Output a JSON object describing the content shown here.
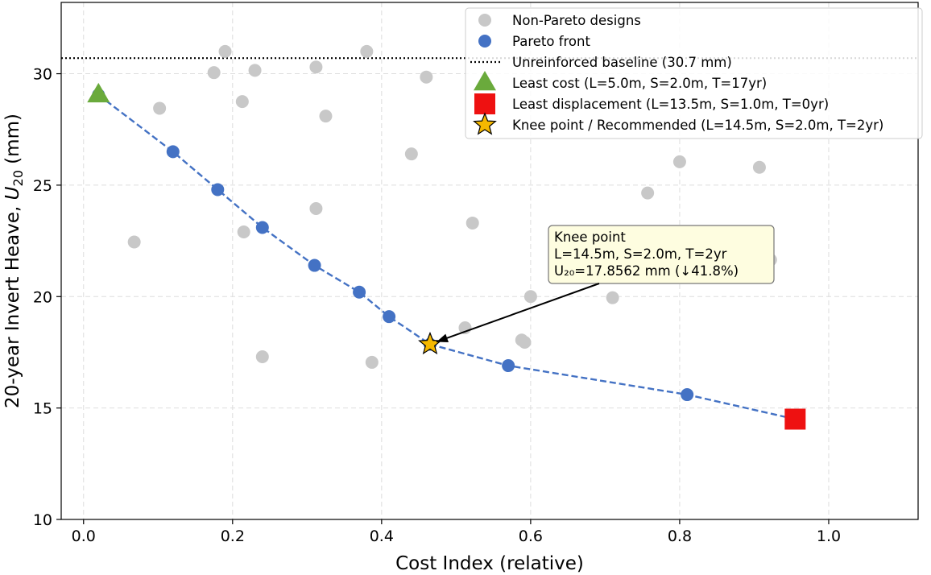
{
  "chart_data": {
    "type": "scatter",
    "xlabel": "Cost Index (relative)",
    "ylabel_main": "20-year Invert Heave, ",
    "ylabel_var": "U",
    "ylabel_sub": "20",
    "ylabel_unit": " (mm)",
    "xlim": [
      -0.03,
      1.12
    ],
    "ylim": [
      10,
      33.2
    ],
    "xticks": [
      0.0,
      0.2,
      0.4,
      0.6,
      0.8,
      1.0
    ],
    "xtick_labels": [
      "0.0",
      "0.2",
      "0.4",
      "0.6",
      "0.8",
      "1.0"
    ],
    "yticks": [
      10,
      15,
      20,
      25,
      30
    ],
    "ytick_labels": [
      "10",
      "15",
      "20",
      "25",
      "30"
    ],
    "grid": true,
    "legend_position": "top-right",
    "baseline": {
      "name": "Unreinforced baseline (30.7 mm)",
      "y": 30.7,
      "color": "#000000"
    },
    "series": [
      {
        "name": "Non-Pareto designs",
        "kind": "scatter",
        "color": "#c8c8c8",
        "points": [
          [
            0.068,
            22.45
          ],
          [
            0.102,
            28.45
          ],
          [
            0.175,
            30.05
          ],
          [
            0.19,
            31.0
          ],
          [
            0.213,
            28.75
          ],
          [
            0.215,
            22.9
          ],
          [
            0.23,
            30.15
          ],
          [
            0.24,
            17.3
          ],
          [
            0.312,
            30.3
          ],
          [
            0.312,
            23.95
          ],
          [
            0.325,
            28.1
          ],
          [
            0.38,
            31.0
          ],
          [
            0.387,
            17.05
          ],
          [
            0.44,
            26.4
          ],
          [
            0.46,
            29.85
          ],
          [
            0.512,
            18.6
          ],
          [
            0.522,
            23.3
          ],
          [
            0.588,
            18.05
          ],
          [
            0.592,
            17.95
          ],
          [
            0.6,
            20.0
          ],
          [
            0.71,
            19.95
          ],
          [
            0.757,
            24.65
          ],
          [
            0.8,
            26.05
          ],
          [
            0.907,
            25.8
          ],
          [
            0.922,
            21.65
          ]
        ]
      },
      {
        "name": "Pareto front",
        "kind": "line+markers",
        "color": "#4472c4",
        "points": [
          [
            0.02,
            29.05
          ],
          [
            0.12,
            26.5
          ],
          [
            0.18,
            24.8
          ],
          [
            0.24,
            23.1
          ],
          [
            0.31,
            21.4
          ],
          [
            0.37,
            20.2
          ],
          [
            0.41,
            19.1
          ],
          [
            0.465,
            17.86
          ],
          [
            0.57,
            16.9
          ],
          [
            0.81,
            15.6
          ],
          [
            0.955,
            14.5
          ]
        ]
      }
    ],
    "highlights": [
      {
        "name": "Least cost",
        "legend_label": "Least cost  (L=5.0m, S=2.0m, T=17yr)",
        "marker": "triangle",
        "color": "#6aaa3c",
        "x": 0.02,
        "y": 29.05
      },
      {
        "name": "Least displacement",
        "legend_label": "Least displacement  (L=13.5m, S=1.0m, T=0yr)",
        "marker": "square",
        "color": "#ee1111",
        "x": 0.955,
        "y": 14.5
      },
      {
        "name": "Knee point / Recommended",
        "legend_label": "Knee point / Recommended  (L=14.5m, S=2.0m, T=2yr)",
        "marker": "star",
        "color": "#f5b800",
        "x": 0.465,
        "y": 17.86
      }
    ],
    "annotation": {
      "lines": [
        "Knee point",
        "L=14.5m, S=2.0m, T=2yr",
        "U₂₀=17.8562 mm  (↓41.8%)"
      ],
      "target_x": 0.465,
      "target_y": 17.86
    }
  }
}
